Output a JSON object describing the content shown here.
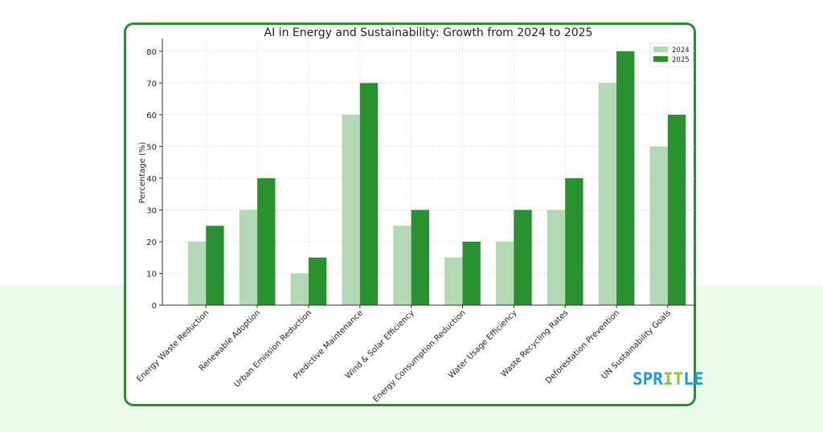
{
  "chart_data": {
    "type": "bar",
    "title": "AI in Energy and Sustainability: Growth from 2024 to 2025",
    "xlabel": "",
    "ylabel": "Percentage (%)",
    "ylim": [
      0,
      84
    ],
    "yticks": [
      0,
      10,
      20,
      30,
      40,
      50,
      60,
      70,
      80
    ],
    "grid": true,
    "legend_position": "top-right",
    "categories": [
      "Energy Waste Reduction",
      "Renewable Adoption",
      "Urban Emission Reduction",
      "Predictive Maintenance",
      "Wind & Solar Efficiency",
      "Energy Consumption Reduction",
      "Water Usage Efficiency",
      "Waste Recycling Rates",
      "Deforestation Prevention",
      "UN Sustainability Goals"
    ],
    "series": [
      {
        "name": "2024",
        "color": "#b2d9b4",
        "values": [
          20,
          30,
          10,
          60,
          25,
          15,
          20,
          30,
          70,
          50
        ]
      },
      {
        "name": "2025",
        "color": "#2a9131",
        "values": [
          25,
          40,
          15,
          70,
          30,
          20,
          30,
          40,
          80,
          60
        ]
      }
    ]
  },
  "logo": {
    "part1": "SPR",
    "part2": "IT",
    "part3": "LE"
  },
  "colors": {
    "border": "#2a8f2e",
    "background_band": "#ebfbea"
  }
}
